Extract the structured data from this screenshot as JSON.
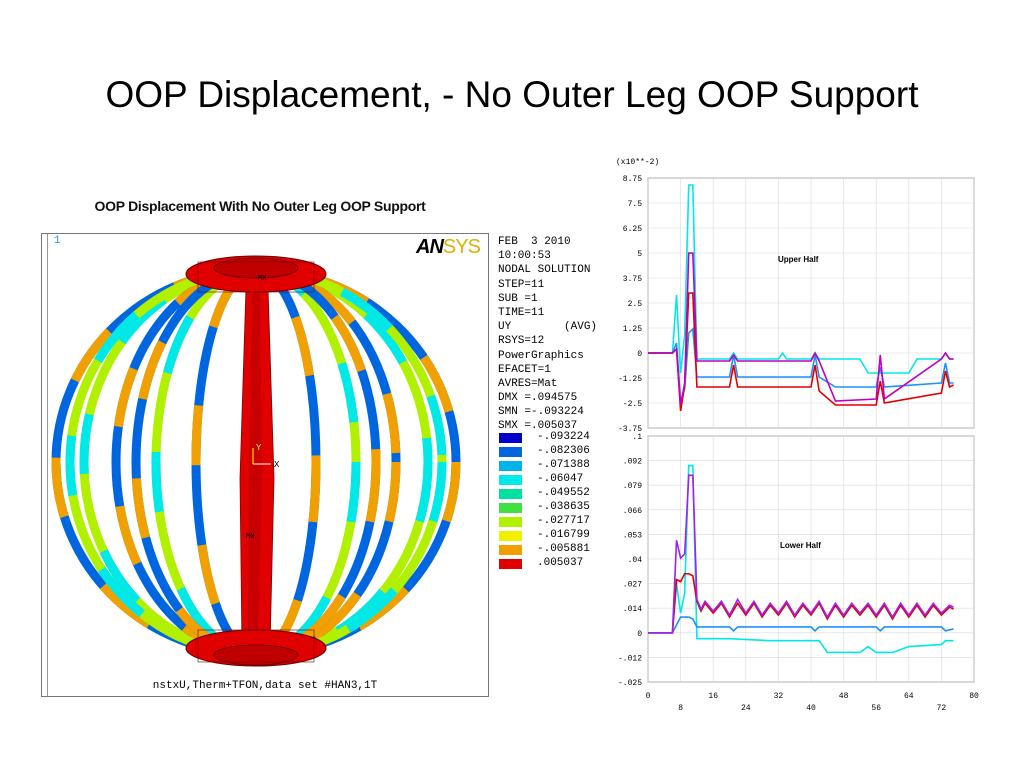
{
  "slide": {
    "title": "OOP Displacement, - No Outer Leg OOP Support"
  },
  "ansys": {
    "caption": "OOP Displacement With No Outer Leg OOP Support",
    "window_number": "1",
    "logo_an": "AN",
    "logo_sys": "SYS",
    "info_lines": [
      "FEB  3 2010",
      "10:00:53",
      "NODAL SOLUTION",
      "STEP=11",
      "SUB =1",
      "TIME=11",
      "UY        (AVG)",
      "RSYS=12",
      "PowerGraphics",
      "EFACET=1",
      "AVRES=Mat",
      "DMX =.094575",
      "SMN =-.093224",
      "SMX =.005037"
    ],
    "legend": [
      {
        "label": "-.093224",
        "color": "#0000c8"
      },
      {
        "label": "-.082306",
        "color": "#0066e0"
      },
      {
        "label": "-.071388",
        "color": "#00b4e8"
      },
      {
        "label": "-.06047",
        "color": "#00e8e8"
      },
      {
        "label": "-.049552",
        "color": "#00e0a0"
      },
      {
        "label": "-.038635",
        "color": "#40e040"
      },
      {
        "label": "-.027717",
        "color": "#b0f000"
      },
      {
        "label": "-.016799",
        "color": "#f0f000"
      },
      {
        "label": "-.005881",
        "color": "#f0a000"
      },
      {
        "label": ".005037",
        "color": "#e00000"
      }
    ],
    "axis_labels": {
      "y": "Y",
      "x": "X",
      "mn": "MN",
      "mx": "MX"
    },
    "footer": "nstxU,Therm+TFON,data set #HAN3,1T"
  },
  "chart_data": [
    {
      "type": "line",
      "title": "Upper Half",
      "multiplier_label": "(x10**-2)",
      "ylim": [
        -3.75,
        8.75
      ],
      "xlim": [
        0,
        80
      ],
      "y_ticks": [
        "8.75",
        "7.5",
        "6.25",
        "5",
        "3.75",
        "2.5",
        "1.25",
        "0",
        "-1.25",
        "-2.5",
        "-3.75"
      ],
      "grid": true,
      "series": [
        {
          "color": "#00e8e8",
          "values": [
            {
              "x": 0,
              "y": 0
            },
            {
              "x": 4,
              "y": 0
            },
            {
              "x": 6,
              "y": 0
            },
            {
              "x": 7,
              "y": 2.9
            },
            {
              "x": 8,
              "y": -1.0
            },
            {
              "x": 9,
              "y": 0.9
            },
            {
              "x": 10,
              "y": 8.4
            },
            {
              "x": 11,
              "y": 8.4
            },
            {
              "x": 12,
              "y": -0.3
            },
            {
              "x": 14,
              "y": -0.3
            },
            {
              "x": 16,
              "y": -0.3
            },
            {
              "x": 20,
              "y": -0.3
            },
            {
              "x": 21,
              "y": 0
            },
            {
              "x": 22,
              "y": -0.3
            },
            {
              "x": 32,
              "y": -0.3
            },
            {
              "x": 33,
              "y": 0
            },
            {
              "x": 34,
              "y": -0.3
            },
            {
              "x": 40,
              "y": -0.3
            },
            {
              "x": 41,
              "y": 0
            },
            {
              "x": 42,
              "y": -0.3
            },
            {
              "x": 48,
              "y": -0.3
            },
            {
              "x": 52,
              "y": -0.3
            },
            {
              "x": 54,
              "y": -1.0
            },
            {
              "x": 60,
              "y": -1.0
            },
            {
              "x": 64,
              "y": -1.0
            },
            {
              "x": 66,
              "y": -0.3
            },
            {
              "x": 72,
              "y": -0.3
            },
            {
              "x": 73,
              "y": 0
            },
            {
              "x": 74,
              "y": -0.3
            },
            {
              "x": 75,
              "y": -0.3
            }
          ]
        },
        {
          "color": "#1e90ff",
          "values": [
            {
              "x": 0,
              "y": 0
            },
            {
              "x": 6,
              "y": 0
            },
            {
              "x": 7,
              "y": 0.5
            },
            {
              "x": 8,
              "y": -2.4
            },
            {
              "x": 9,
              "y": -1.8
            },
            {
              "x": 10,
              "y": 1.0
            },
            {
              "x": 11,
              "y": 1.2
            },
            {
              "x": 12,
              "y": -1.2
            },
            {
              "x": 20,
              "y": -1.2
            },
            {
              "x": 21,
              "y": -0.1
            },
            {
              "x": 22,
              "y": -1.2
            },
            {
              "x": 40,
              "y": -1.2
            },
            {
              "x": 41,
              "y": -0.1
            },
            {
              "x": 42,
              "y": -1.2
            },
            {
              "x": 46,
              "y": -1.7
            },
            {
              "x": 56,
              "y": -1.7
            },
            {
              "x": 57,
              "y": -0.7
            },
            {
              "x": 58,
              "y": -1.7
            },
            {
              "x": 72,
              "y": -1.5
            },
            {
              "x": 73,
              "y": -0.5
            },
            {
              "x": 74,
              "y": -1.5
            },
            {
              "x": 75,
              "y": -1.5
            }
          ]
        },
        {
          "color": "#e00000",
          "values": [
            {
              "x": 0,
              "y": 0
            },
            {
              "x": 6,
              "y": 0
            },
            {
              "x": 7,
              "y": 0.2
            },
            {
              "x": 8,
              "y": -2.9
            },
            {
              "x": 9,
              "y": -1.6
            },
            {
              "x": 10,
              "y": 3.0
            },
            {
              "x": 11,
              "y": 3.0
            },
            {
              "x": 12,
              "y": -1.7
            },
            {
              "x": 20,
              "y": -1.7
            },
            {
              "x": 21,
              "y": -0.6
            },
            {
              "x": 22,
              "y": -1.7
            },
            {
              "x": 40,
              "y": -1.7
            },
            {
              "x": 41,
              "y": -0.6
            },
            {
              "x": 42,
              "y": -1.9
            },
            {
              "x": 46,
              "y": -2.6
            },
            {
              "x": 56,
              "y": -2.6
            },
            {
              "x": 57,
              "y": -1.4
            },
            {
              "x": 58,
              "y": -2.5
            },
            {
              "x": 72,
              "y": -2.0
            },
            {
              "x": 73,
              "y": -0.9
            },
            {
              "x": 74,
              "y": -1.7
            },
            {
              "x": 75,
              "y": -1.6
            }
          ]
        },
        {
          "color": "#c000c0",
          "values": [
            {
              "x": 0,
              "y": 0
            },
            {
              "x": 6,
              "y": 0
            },
            {
              "x": 7,
              "y": 0.2
            },
            {
              "x": 8,
              "y": -2.6
            },
            {
              "x": 9,
              "y": -1.5
            },
            {
              "x": 10,
              "y": 5.0
            },
            {
              "x": 11,
              "y": 5.0
            },
            {
              "x": 12,
              "y": -0.4
            },
            {
              "x": 20,
              "y": -0.4
            },
            {
              "x": 21,
              "y": -0.1
            },
            {
              "x": 22,
              "y": -0.4
            },
            {
              "x": 40,
              "y": -0.4
            },
            {
              "x": 41,
              "y": 0
            },
            {
              "x": 42,
              "y": -0.4
            },
            {
              "x": 46,
              "y": -2.4
            },
            {
              "x": 56,
              "y": -2.3
            },
            {
              "x": 57,
              "y": -0.1
            },
            {
              "x": 58,
              "y": -2.3
            },
            {
              "x": 72,
              "y": -0.3
            },
            {
              "x": 73,
              "y": 0
            },
            {
              "x": 74,
              "y": -0.3
            },
            {
              "x": 75,
              "y": -0.3
            }
          ]
        }
      ]
    },
    {
      "type": "line",
      "title": "Lower Half",
      "ylim": [
        -0.025,
        0.1
      ],
      "xlim": [
        0,
        80
      ],
      "y_ticks": [
        ".1",
        ".092",
        ".079",
        ".066",
        ".053",
        ".04",
        ".027",
        ".014",
        "0",
        "-.012",
        "-.025"
      ],
      "x_ticks_top": [
        "0",
        "16",
        "32",
        "48",
        "64",
        "80"
      ],
      "x_ticks_bottom": [
        "8",
        "24",
        "40",
        "56",
        "72"
      ],
      "grid": true,
      "series": [
        {
          "color": "#00e8e8",
          "values": [
            {
              "x": 0,
              "y": 0
            },
            {
              "x": 6,
              "y": 0
            },
            {
              "x": 7,
              "y": 0.025
            },
            {
              "x": 8,
              "y": 0.01
            },
            {
              "x": 9,
              "y": 0.02
            },
            {
              "x": 10,
              "y": 0.085
            },
            {
              "x": 11,
              "y": 0.085
            },
            {
              "x": 12,
              "y": -0.003
            },
            {
              "x": 20,
              "y": -0.003
            },
            {
              "x": 30,
              "y": -0.004
            },
            {
              "x": 42,
              "y": -0.004
            },
            {
              "x": 44,
              "y": -0.01
            },
            {
              "x": 52,
              "y": -0.01
            },
            {
              "x": 54,
              "y": -0.007
            },
            {
              "x": 56,
              "y": -0.01
            },
            {
              "x": 60,
              "y": -0.01
            },
            {
              "x": 64,
              "y": -0.007
            },
            {
              "x": 72,
              "y": -0.006
            },
            {
              "x": 73,
              "y": -0.004
            },
            {
              "x": 75,
              "y": -0.004
            }
          ]
        },
        {
          "color": "#1e90ff",
          "values": [
            {
              "x": 0,
              "y": 0
            },
            {
              "x": 6,
              "y": 0
            },
            {
              "x": 8,
              "y": 0.008
            },
            {
              "x": 10,
              "y": 0.008
            },
            {
              "x": 11,
              "y": 0.007
            },
            {
              "x": 12,
              "y": 0.003
            },
            {
              "x": 20,
              "y": 0.003
            },
            {
              "x": 21,
              "y": 0.001
            },
            {
              "x": 22,
              "y": 0.003
            },
            {
              "x": 40,
              "y": 0.003
            },
            {
              "x": 41,
              "y": 0.001
            },
            {
              "x": 42,
              "y": 0.003
            },
            {
              "x": 56,
              "y": 0.003
            },
            {
              "x": 57,
              "y": 0.001
            },
            {
              "x": 58,
              "y": 0.003
            },
            {
              "x": 72,
              "y": 0.003
            },
            {
              "x": 73,
              "y": 0.001
            },
            {
              "x": 75,
              "y": 0.002
            }
          ]
        },
        {
          "color": "#e00000",
          "values": [
            {
              "x": 0,
              "y": 0
            },
            {
              "x": 6,
              "y": 0
            },
            {
              "x": 7,
              "y": 0.027
            },
            {
              "x": 8,
              "y": 0.026
            },
            {
              "x": 9,
              "y": 0.03
            },
            {
              "x": 10,
              "y": 0.03
            },
            {
              "x": 11,
              "y": 0.029
            },
            {
              "x": 12,
              "y": 0.016
            },
            {
              "x": 13,
              "y": 0.011
            },
            {
              "x": 14,
              "y": 0.015
            },
            {
              "x": 16,
              "y": 0.01
            },
            {
              "x": 18,
              "y": 0.015
            },
            {
              "x": 20,
              "y": 0.008
            },
            {
              "x": 22,
              "y": 0.015
            },
            {
              "x": 24,
              "y": 0.009
            },
            {
              "x": 26,
              "y": 0.015
            },
            {
              "x": 28,
              "y": 0.008
            },
            {
              "x": 30,
              "y": 0.014
            },
            {
              "x": 32,
              "y": 0.009
            },
            {
              "x": 34,
              "y": 0.015
            },
            {
              "x": 36,
              "y": 0.008
            },
            {
              "x": 38,
              "y": 0.014
            },
            {
              "x": 40,
              "y": 0.009
            },
            {
              "x": 42,
              "y": 0.015
            },
            {
              "x": 44,
              "y": 0.007
            },
            {
              "x": 46,
              "y": 0.014
            },
            {
              "x": 48,
              "y": 0.008
            },
            {
              "x": 50,
              "y": 0.014
            },
            {
              "x": 52,
              "y": 0.009
            },
            {
              "x": 54,
              "y": 0.014
            },
            {
              "x": 56,
              "y": 0.008
            },
            {
              "x": 58,
              "y": 0.014
            },
            {
              "x": 60,
              "y": 0.007
            },
            {
              "x": 62,
              "y": 0.014
            },
            {
              "x": 64,
              "y": 0.008
            },
            {
              "x": 66,
              "y": 0.014
            },
            {
              "x": 68,
              "y": 0.008
            },
            {
              "x": 70,
              "y": 0.014
            },
            {
              "x": 72,
              "y": 0.009
            },
            {
              "x": 74,
              "y": 0.013
            },
            {
              "x": 75,
              "y": 0.012
            }
          ]
        },
        {
          "color": "#a020f0",
          "values": [
            {
              "x": 0,
              "y": 0
            },
            {
              "x": 6,
              "y": 0
            },
            {
              "x": 7,
              "y": 0.047
            },
            {
              "x": 8,
              "y": 0.038
            },
            {
              "x": 9,
              "y": 0.04
            },
            {
              "x": 10,
              "y": 0.08
            },
            {
              "x": 11,
              "y": 0.08
            },
            {
              "x": 12,
              "y": 0.017
            },
            {
              "x": 13,
              "y": 0.012
            },
            {
              "x": 14,
              "y": 0.016
            },
            {
              "x": 16,
              "y": 0.011
            },
            {
              "x": 18,
              "y": 0.016
            },
            {
              "x": 20,
              "y": 0.009
            },
            {
              "x": 22,
              "y": 0.017
            },
            {
              "x": 24,
              "y": 0.01
            },
            {
              "x": 26,
              "y": 0.016
            },
            {
              "x": 28,
              "y": 0.009
            },
            {
              "x": 30,
              "y": 0.015
            },
            {
              "x": 32,
              "y": 0.01
            },
            {
              "x": 34,
              "y": 0.016
            },
            {
              "x": 36,
              "y": 0.009
            },
            {
              "x": 38,
              "y": 0.015
            },
            {
              "x": 40,
              "y": 0.01
            },
            {
              "x": 42,
              "y": 0.016
            },
            {
              "x": 44,
              "y": 0.008
            },
            {
              "x": 46,
              "y": 0.015
            },
            {
              "x": 48,
              "y": 0.009
            },
            {
              "x": 50,
              "y": 0.015
            },
            {
              "x": 52,
              "y": 0.01
            },
            {
              "x": 54,
              "y": 0.015
            },
            {
              "x": 56,
              "y": 0.009
            },
            {
              "x": 58,
              "y": 0.015
            },
            {
              "x": 60,
              "y": 0.008
            },
            {
              "x": 62,
              "y": 0.015
            },
            {
              "x": 64,
              "y": 0.009
            },
            {
              "x": 66,
              "y": 0.015
            },
            {
              "x": 68,
              "y": 0.009
            },
            {
              "x": 70,
              "y": 0.015
            },
            {
              "x": 72,
              "y": 0.01
            },
            {
              "x": 74,
              "y": 0.014
            },
            {
              "x": 75,
              "y": 0.013
            }
          ]
        }
      ]
    }
  ]
}
